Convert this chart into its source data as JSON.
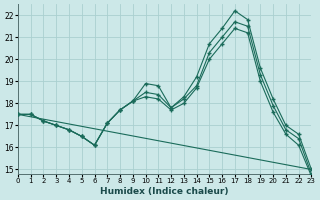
{
  "xlabel": "Humidex (Indice chaleur)",
  "bg_color": "#cce8e8",
  "grid_color": "#aad0d0",
  "line_color": "#1a6b5a",
  "xlim": [
    0,
    23
  ],
  "ylim": [
    14.8,
    22.5
  ],
  "yticks": [
    15,
    16,
    17,
    18,
    19,
    20,
    21,
    22
  ],
  "xticks": [
    0,
    1,
    2,
    3,
    4,
    5,
    6,
    7,
    8,
    9,
    10,
    11,
    12,
    13,
    14,
    15,
    16,
    17,
    18,
    19,
    20,
    21,
    22,
    23
  ],
  "line1_x": [
    0,
    1,
    2,
    3,
    4,
    5,
    6,
    7,
    8,
    9,
    10,
    11,
    12,
    13,
    14,
    15,
    16,
    17,
    18,
    19,
    20,
    21,
    22,
    23
  ],
  "line1_y": [
    17.5,
    17.5,
    17.2,
    17.0,
    16.8,
    16.5,
    16.1,
    17.1,
    17.7,
    18.1,
    18.9,
    18.8,
    17.8,
    18.3,
    19.2,
    20.7,
    21.4,
    22.2,
    21.8,
    19.6,
    18.2,
    17.0,
    16.6,
    15.0
  ],
  "line2_x": [
    0,
    1,
    2,
    3,
    4,
    5,
    6,
    7,
    8,
    9,
    10,
    11,
    12,
    13,
    14,
    15,
    16,
    17,
    18,
    19,
    20,
    21,
    22,
    23
  ],
  "line2_y": [
    17.5,
    17.5,
    17.2,
    17.0,
    16.8,
    16.5,
    16.1,
    17.1,
    17.7,
    18.1,
    18.5,
    18.4,
    17.8,
    18.2,
    18.8,
    20.3,
    21.0,
    21.7,
    21.5,
    19.3,
    17.9,
    16.8,
    16.4,
    14.8
  ],
  "line3_x": [
    0,
    1,
    2,
    3,
    4,
    5,
    6,
    7,
    8,
    9,
    10,
    11,
    12,
    13,
    14,
    15,
    16,
    17,
    18,
    19,
    20,
    21,
    22,
    23
  ],
  "line3_y": [
    17.5,
    17.5,
    17.2,
    17.0,
    16.8,
    16.5,
    16.1,
    17.1,
    17.7,
    18.1,
    18.3,
    18.2,
    17.7,
    18.0,
    18.7,
    20.0,
    20.7,
    21.4,
    21.2,
    19.0,
    17.6,
    16.6,
    16.1,
    14.7
  ],
  "line4_x": [
    0,
    23
  ],
  "line4_y": [
    17.5,
    15.0
  ]
}
